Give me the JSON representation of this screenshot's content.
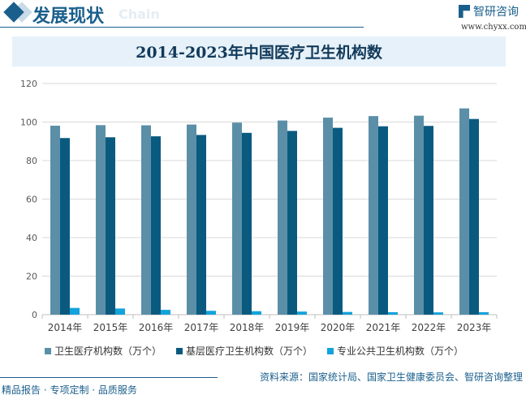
{
  "header": {
    "title": "发展现状",
    "subtitle_en": "Chain",
    "logo_text": "智研咨询",
    "logo_url": "www.chyxx.com"
  },
  "footer": {
    "tagline": "精品报告 · 专项定制 · 品质服务",
    "source": "资料来源：国家统计局、国家卫生健康委员会、智研咨询整理"
  },
  "chart_data": {
    "type": "bar",
    "title": "2014-2023年中国医疗卫生机构数",
    "categories": [
      "2014年",
      "2015年",
      "2016年",
      "2017年",
      "2018年",
      "2019年",
      "2020年",
      "2021年",
      "2022年",
      "2023年"
    ],
    "series": [
      {
        "name": "卫生医疗机构数（万个）",
        "color": "#5b8fa8",
        "values": [
          98.1,
          98.4,
          98.3,
          98.7,
          99.7,
          100.8,
          102.3,
          103.1,
          103.3,
          107.1
        ]
      },
      {
        "name": "基层医疗卫生机构数（万个）",
        "color": "#0a5a80",
        "values": [
          91.7,
          92.1,
          92.6,
          93.3,
          94.4,
          95.4,
          97.0,
          97.8,
          98.0,
          101.6
        ]
      },
      {
        "name": "专业公共卫生机构数（万个）",
        "color": "#12a3dc",
        "values": [
          3.5,
          3.2,
          2.5,
          2.0,
          1.8,
          1.6,
          1.4,
          1.3,
          1.2,
          1.3
        ]
      }
    ],
    "ylim": [
      0,
      120
    ],
    "yticks": [
      0,
      20,
      40,
      60,
      80,
      100,
      120
    ],
    "grid": true,
    "legend": "bottom"
  }
}
